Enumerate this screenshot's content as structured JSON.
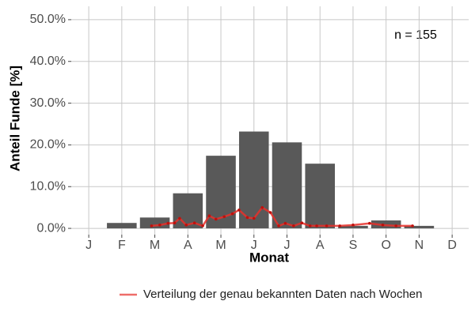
{
  "chart_data": {
    "type": "bar",
    "x_label": "Monat",
    "y_label": "Anteil Funde [%]",
    "annotation": "n = 155",
    "categories": [
      "J",
      "F",
      "M",
      "A",
      "M",
      "J",
      "J",
      "A",
      "S",
      "O",
      "N",
      "D"
    ],
    "values": [
      0,
      1.3,
      2.6,
      8.4,
      17.4,
      23.2,
      20.6,
      15.5,
      0.6,
      1.9,
      0.6,
      0
    ],
    "color": "#595959",
    "series": [
      {
        "name": "Verteilung der genau bekannten Daten nach Wochen",
        "color": "#e8302a",
        "x": [
          2.9,
          3.15,
          3.4,
          3.6,
          3.75,
          3.95,
          4.2,
          4.45,
          4.65,
          4.85,
          5.1,
          5.35,
          5.55,
          5.8,
          6.0,
          6.25,
          6.5,
          6.75,
          6.95,
          7.2,
          7.45,
          7.7,
          7.9,
          8.2,
          8.6,
          9.0,
          9.5,
          9.9,
          10.3,
          10.8
        ],
        "values": [
          0.6,
          0.8,
          1.2,
          1.3,
          2.4,
          0.8,
          1.3,
          0.6,
          3.0,
          2.2,
          2.8,
          3.5,
          4.4,
          2.6,
          2.4,
          5.0,
          3.8,
          0.6,
          1.2,
          0.6,
          1.3,
          0.6,
          0.6,
          0.6,
          0.6,
          0.8,
          1.2,
          0.8,
          0.6,
          0.6
        ]
      }
    ],
    "xlim": [
      0.47,
      12.5
    ],
    "ylim": [
      -1.5,
      53.2
    ],
    "yticks": [
      {
        "value": 0,
        "label": "0.0%"
      },
      {
        "value": 10,
        "label": "10.0%"
      },
      {
        "value": 20,
        "label": "20.0%"
      },
      {
        "value": 30,
        "label": "30.0%"
      },
      {
        "value": 40,
        "label": "40.0%"
      },
      {
        "value": 50,
        "label": "50.0%"
      }
    ],
    "grid": true
  }
}
